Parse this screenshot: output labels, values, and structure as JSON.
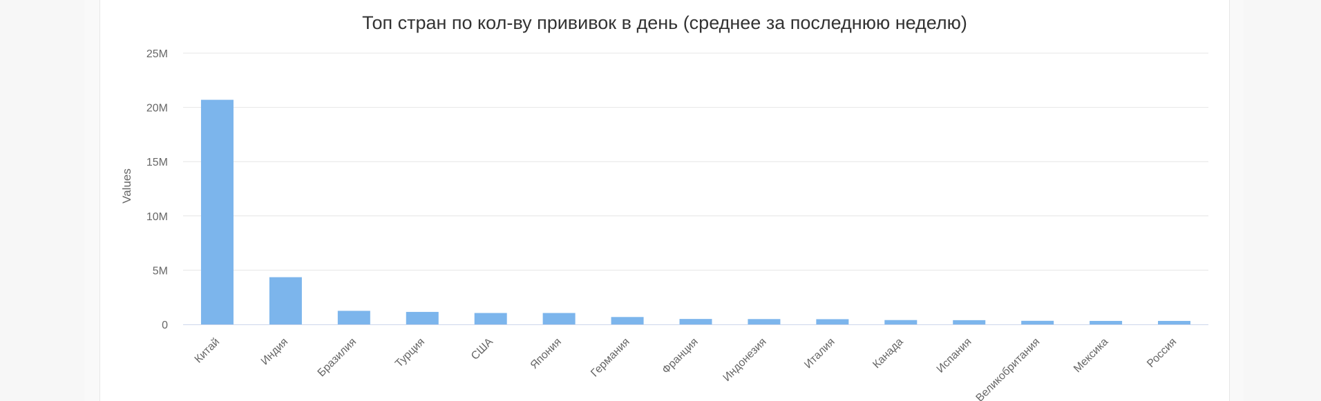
{
  "chart_data": {
    "type": "bar",
    "title": "Топ стран по кол-ву прививок в день (среднее за последнюю неделю)",
    "xlabel": "",
    "ylabel": "Values",
    "ylim": [
      0,
      25000000
    ],
    "yticks": [
      0,
      5000000,
      10000000,
      15000000,
      20000000,
      25000000
    ],
    "ytick_labels": [
      "0",
      "5M",
      "10M",
      "15M",
      "20M",
      "25M"
    ],
    "grid": true,
    "categories": [
      "Китай",
      "Индия",
      "Бразилия",
      "Турция",
      "США",
      "Япония",
      "Германия",
      "Франция",
      "Индонезия",
      "Италия",
      "Канада",
      "Испания",
      "Великобритания",
      "Мексика",
      "Россия"
    ],
    "values": [
      20700000,
      4350000,
      1250000,
      1150000,
      1050000,
      1050000,
      680000,
      500000,
      490000,
      480000,
      400000,
      390000,
      330000,
      320000,
      320000
    ],
    "colors": {
      "bar": "#7cb5ec",
      "grid": "#e6e6e6",
      "axis": "#ccd6eb",
      "text": "#666666",
      "title": "#333333"
    }
  }
}
